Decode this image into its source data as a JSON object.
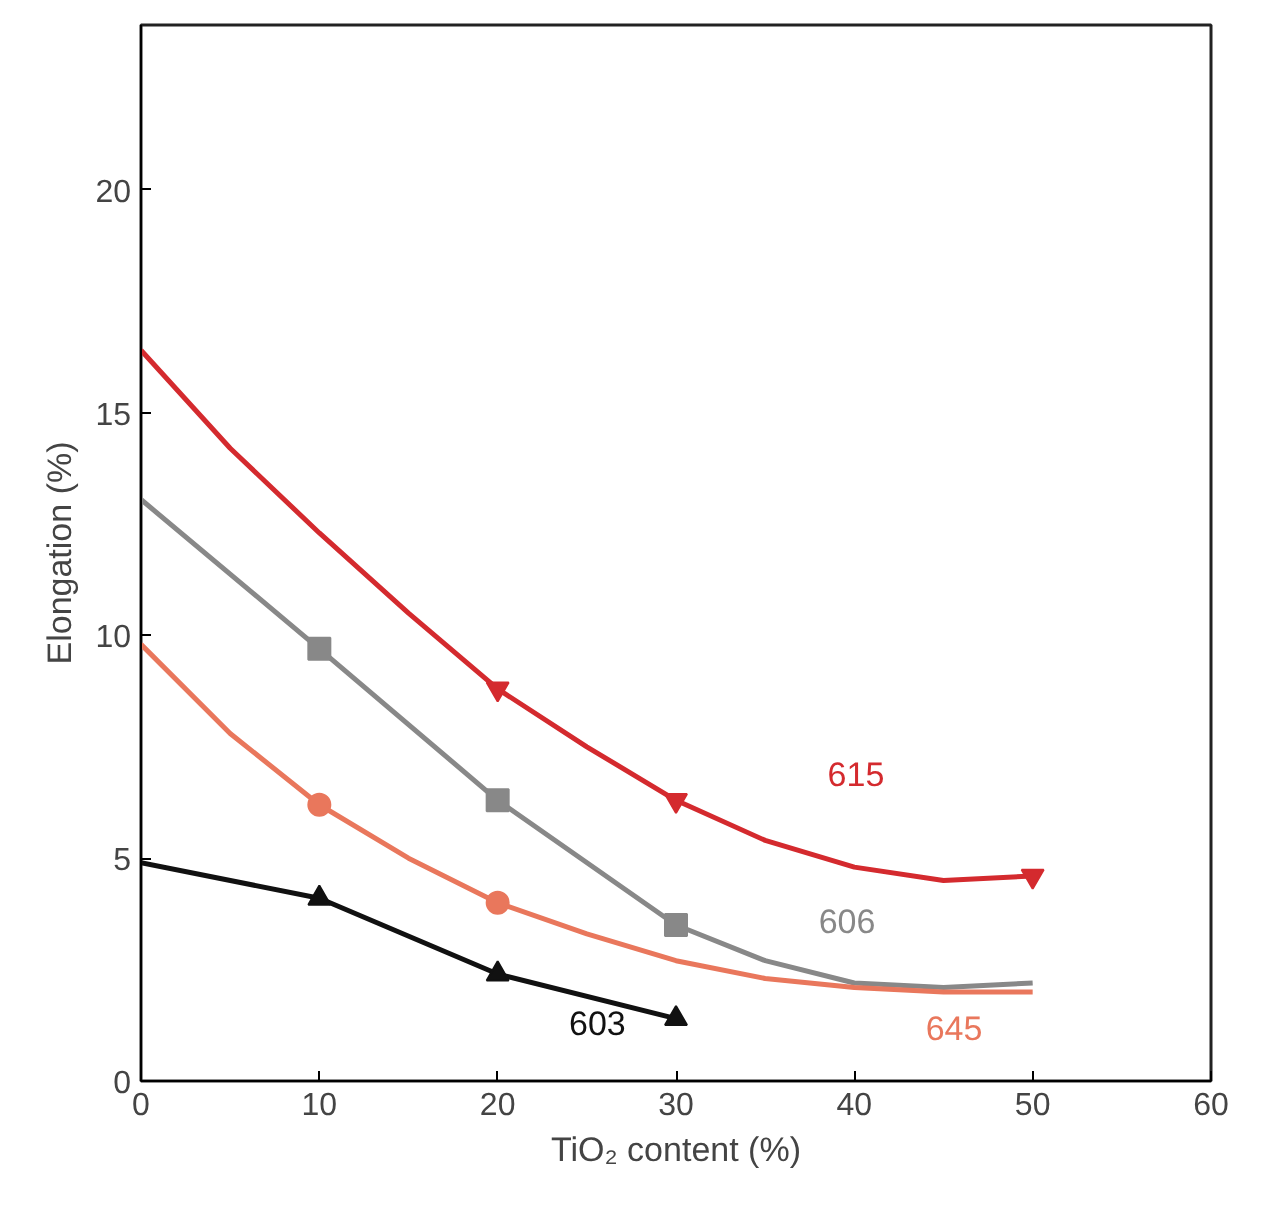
{
  "chart_data": {
    "type": "line",
    "xlabel": "TiO₂ content (%)",
    "ylabel": "Elongation (%)",
    "xlim": [
      0,
      60
    ],
    "ylim": [
      0,
      23.7
    ],
    "xticks": [
      0,
      10,
      20,
      30,
      40,
      50,
      60
    ],
    "yticks": [
      0,
      5,
      10,
      15,
      20
    ],
    "grid": false,
    "series": [
      {
        "name": "615",
        "color": "#d42a2e",
        "x": [
          0,
          5,
          10,
          15,
          20,
          25,
          30,
          35,
          40,
          45,
          50
        ],
        "values": [
          16.4,
          14.2,
          12.3,
          10.5,
          8.8,
          7.5,
          6.3,
          5.4,
          4.8,
          4.5,
          4.6
        ],
        "marker": "none"
      },
      {
        "type": "scatter",
        "color": "#d42a2e",
        "x": [
          20,
          30,
          50
        ],
        "values": [
          8.8,
          6.3,
          4.6
        ],
        "marker": "triangle_down"
      },
      {
        "name": "606",
        "color": "#888888",
        "x": [
          0,
          10,
          20,
          30,
          35,
          40,
          45,
          50
        ],
        "values": [
          13.05,
          9.7,
          6.3,
          3.5,
          2.7,
          2.2,
          2.1,
          2.2
        ],
        "marker": "none"
      },
      {
        "type": "scatter",
        "color": "#888888",
        "x": [
          10,
          20,
          30
        ],
        "values": [
          9.7,
          6.3,
          3.5
        ],
        "marker": "square"
      },
      {
        "name": "645",
        "color": "#e9775c",
        "x": [
          0,
          5,
          10,
          15,
          20,
          25,
          30,
          35,
          40,
          45,
          50
        ],
        "values": [
          9.8,
          7.8,
          6.2,
          5.0,
          4.0,
          3.3,
          2.7,
          2.3,
          2.1,
          2.0,
          2.0
        ],
        "marker": "none"
      },
      {
        "type": "scatter",
        "color": "#e9775c",
        "x": [
          10,
          20
        ],
        "values": [
          6.2,
          4.0
        ],
        "marker": "circle"
      },
      {
        "name": "603",
        "color": "#111111",
        "x": [
          0,
          10,
          20,
          30
        ],
        "values": [
          4.9,
          4.1,
          2.4,
          1.4
        ],
        "marker": "none"
      },
      {
        "type": "scatter",
        "color": "#111111",
        "x": [
          10,
          20,
          30
        ],
        "values": [
          4.1,
          2.4,
          1.4
        ],
        "marker": "triangle"
      }
    ]
  }
}
